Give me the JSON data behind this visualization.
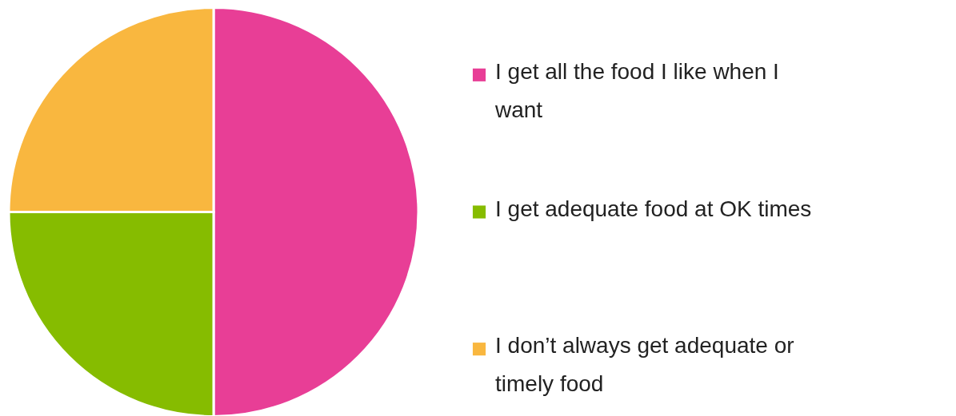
{
  "chart_data": {
    "type": "pie",
    "categories": [
      "I get all the food I like when I want",
      "I get adequate food at OK times",
      "I don’t always get adequate or timely food"
    ],
    "values": [
      50,
      25,
      25
    ],
    "colors": [
      "#e83e96",
      "#86bc00",
      "#f9b73f"
    ],
    "legend": "right"
  }
}
